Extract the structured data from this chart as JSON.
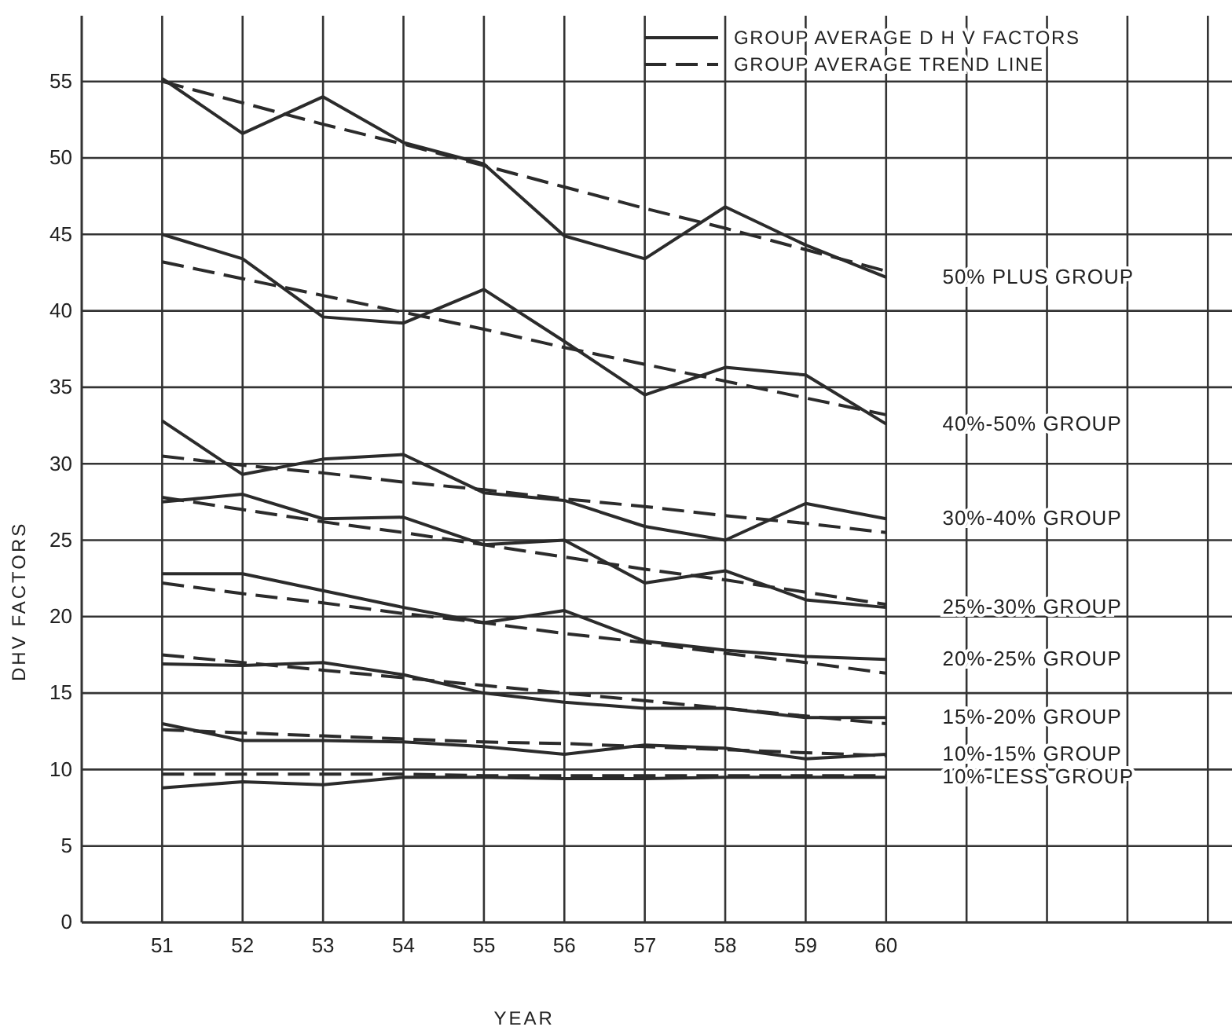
{
  "chart_data": {
    "type": "line",
    "xlabel": "YEAR",
    "ylabel": "DHV FACTORS",
    "annotations": [
      "GROUP AVERAGE D H V FACTORS",
      "GROUP AVERAGE TREND LINE"
    ],
    "x": [
      51,
      52,
      53,
      54,
      55,
      56,
      57,
      58,
      59,
      60
    ],
    "xlim": [
      50,
      64.3
    ],
    "ylim": [
      0,
      59.3
    ],
    "xticks": [
      51,
      52,
      53,
      54,
      55,
      56,
      57,
      58,
      59,
      60,
      {
        "value": 61,
        "label": null
      },
      {
        "value": 62,
        "label": null
      },
      {
        "value": 63,
        "label": null
      },
      {
        "value": 64,
        "label": null
      }
    ],
    "yticks": [
      0,
      5,
      10,
      15,
      20,
      25,
      30,
      35,
      40,
      45,
      50,
      55
    ],
    "grid": true,
    "marker": "none",
    "line_style": "solid",
    "series": [
      {
        "name": "50% PLUS GROUP",
        "color": "#2b2b2b",
        "values": [
          55.2,
          51.6,
          54,
          51,
          49.6,
          44.9,
          43.4,
          46.8,
          44.3,
          42.2
        ]
      },
      {
        "name": "40%-50% GROUP",
        "color": "#2b2b2b",
        "values": [
          45,
          43.4,
          39.6,
          39.2,
          41.4,
          38,
          34.5,
          36.3,
          35.8,
          32.6
        ]
      },
      {
        "name": "30%-40% GROUP",
        "color": "#2b2b2b",
        "values": [
          32.8,
          29.3,
          30.3,
          30.6,
          28.1,
          27.6,
          25.9,
          25,
          27.4,
          26.4
        ]
      },
      {
        "name": "25%-30% GROUP",
        "color": "#2b2b2b",
        "values": [
          27.5,
          28,
          26.4,
          26.5,
          24.7,
          25,
          22.2,
          23,
          21.1,
          20.6
        ]
      },
      {
        "name": "20%-25% GROUP",
        "color": "#2b2b2b",
        "values": [
          22.8,
          22.8,
          21.7,
          20.6,
          19.6,
          20.4,
          18.4,
          17.8,
          17.4,
          17.2
        ]
      },
      {
        "name": "15%-20% GROUP",
        "color": "#2b2b2b",
        "values": [
          16.9,
          16.8,
          17,
          16.2,
          15,
          14.4,
          14,
          14,
          13.4,
          13.4
        ]
      },
      {
        "name": "10%-15% GROUP",
        "color": "#2b2b2b",
        "values": [
          13,
          11.9,
          11.9,
          11.8,
          11.5,
          11,
          11.6,
          11.4,
          10.7,
          11
        ]
      },
      {
        "name": "10%-LESS GROUP",
        "color": "#2b2b2b",
        "values": [
          8.8,
          9.2,
          9,
          9.5,
          9.5,
          9.4,
          9.4,
          9.5,
          9.5,
          9.5
        ]
      },
      {
        "type": "line",
        "line_style": "dashed",
        "color": "#2b2b2b",
        "values": [
          55,
          53.6,
          52.2,
          50.9,
          49.5,
          48.1,
          46.7,
          45.4,
          44,
          42.6
        ]
      },
      {
        "type": "line",
        "line_style": "dashed",
        "color": "#2b2b2b",
        "values": [
          43.2,
          42.1,
          41,
          39.9,
          38.8,
          37.6,
          36.5,
          35.4,
          34.3,
          33.2
        ]
      },
      {
        "type": "line",
        "line_style": "dashed",
        "color": "#2b2b2b",
        "values": [
          30.5,
          29.9,
          29.4,
          28.8,
          28.3,
          27.7,
          27.2,
          26.6,
          26.1,
          25.5
        ]
      },
      {
        "type": "line",
        "line_style": "dashed",
        "color": "#2b2b2b",
        "values": [
          27.8,
          27,
          26.2,
          25.5,
          24.7,
          23.9,
          23.1,
          22.4,
          21.6,
          20.8
        ]
      },
      {
        "type": "line",
        "line_style": "dashed",
        "color": "#2b2b2b",
        "values": [
          22.2,
          21.5,
          20.9,
          20.2,
          19.6,
          18.9,
          18.3,
          17.6,
          17,
          16.3
        ]
      },
      {
        "type": "line",
        "line_style": "dashed",
        "color": "#2b2b2b",
        "values": [
          17.5,
          17,
          16.5,
          16,
          15.5,
          15,
          14.5,
          14,
          13.5,
          13
        ]
      },
      {
        "type": "line",
        "line_style": "dashed",
        "color": "#2b2b2b",
        "values": [
          12.6,
          12.4,
          12.2,
          12,
          11.8,
          11.7,
          11.5,
          11.3,
          11.1,
          10.9
        ]
      },
      {
        "type": "line",
        "line_style": "dashed",
        "color": "#2b2b2b",
        "values": [
          9.7,
          9.7,
          9.7,
          9.7,
          9.6,
          9.6,
          9.6,
          9.6,
          9.6,
          9.6
        ]
      }
    ]
  }
}
